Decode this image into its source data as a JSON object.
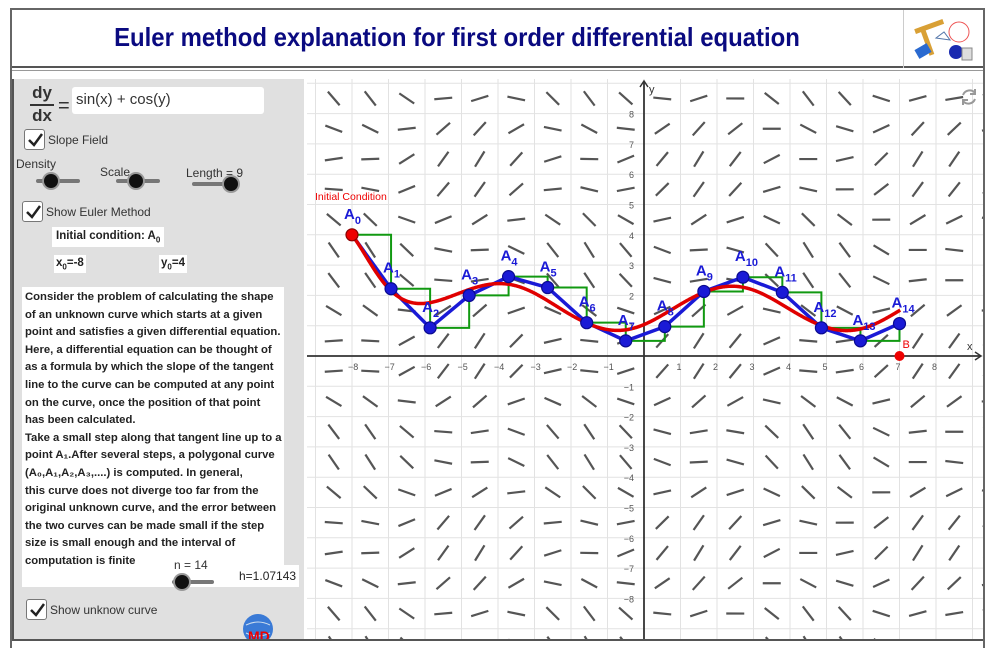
{
  "header": {
    "title": "Euler method explanation for first order differential equation",
    "logo_icon": "geometry-tools-logo"
  },
  "panel": {
    "frac_num": "dy",
    "frac_den": "dx",
    "equals": "=",
    "function_input": "sin(x) + cos(y)",
    "slope_field": {
      "label": "Slope Field",
      "checked": true
    },
    "sliders": {
      "density": "Density",
      "scale": "Scale",
      "length": "Length = 9"
    },
    "show_euler": {
      "label": "Show Euler Method",
      "checked": true
    },
    "initial_condition": "Initial condition: A",
    "initial_sub": "0",
    "x0_label": "x",
    "x0_sub": "0",
    "x0_val": "=-8",
    "y0_label": "y",
    "y0_sub": "0",
    "y0_val": "=4",
    "paragraph": [
      "Consider the problem of calculating the shape",
      "of an unknown curve which starts at a given",
      "point and satisfies a given differential equation.",
      "Here, a differential equation can be thought of",
      " as a formula by which the slope of the tangent",
      " line to the curve can be computed at any point",
      " on the curve, once the position of that point",
      " has been calculated.",
      "Take a small step along that tangent line up to a",
      " point A₁.After several steps, a polygonal curve",
      "(A₀,A₁,A₂,A₃,....) is computed. In general,",
      "this curve does not diverge too far from the",
      "original unknown curve, and the error between",
      " the two curves can be made small if the step",
      " size is small enough and the interval of",
      "computation is finite"
    ],
    "n_label": "n = 14",
    "h_label": "h=1.07143",
    "show_curve": {
      "label": "Show unknow curve",
      "checked": true
    }
  },
  "graph": {
    "initial_label": "Initial Condition",
    "b_label": "B",
    "x_axis": "x",
    "y_axis": "y",
    "xticks": [
      -8,
      -7,
      -6,
      -5,
      -4,
      -3,
      -2,
      -1,
      0,
      1,
      2,
      3,
      4,
      5,
      6,
      7,
      8
    ],
    "yticks": [
      -8,
      -7,
      -6,
      -5,
      -4,
      -3,
      -2,
      -1,
      1,
      2,
      3,
      4,
      5,
      6,
      7,
      8
    ],
    "colors": {
      "euler": "#1a1ad6",
      "curve": "#e00000",
      "steps": "#119911",
      "field": "#555555",
      "grid": "#e2e2e2"
    },
    "euler_points": [
      [
        -8,
        4
      ],
      [
        -6.93,
        2.22
      ],
      [
        -5.86,
        0.93
      ],
      [
        -4.79,
        2.0
      ],
      [
        -3.71,
        2.62
      ],
      [
        -2.64,
        2.26
      ],
      [
        -1.57,
        1.1
      ],
      [
        -0.5,
        0.5
      ],
      [
        0.57,
        0.97
      ],
      [
        1.64,
        2.13
      ],
      [
        2.71,
        2.6
      ],
      [
        3.79,
        2.1
      ],
      [
        4.86,
        0.93
      ],
      [
        5.93,
        0.5
      ],
      [
        7,
        1.07
      ]
    ],
    "point_B": [
      7,
      0
    ]
  }
}
